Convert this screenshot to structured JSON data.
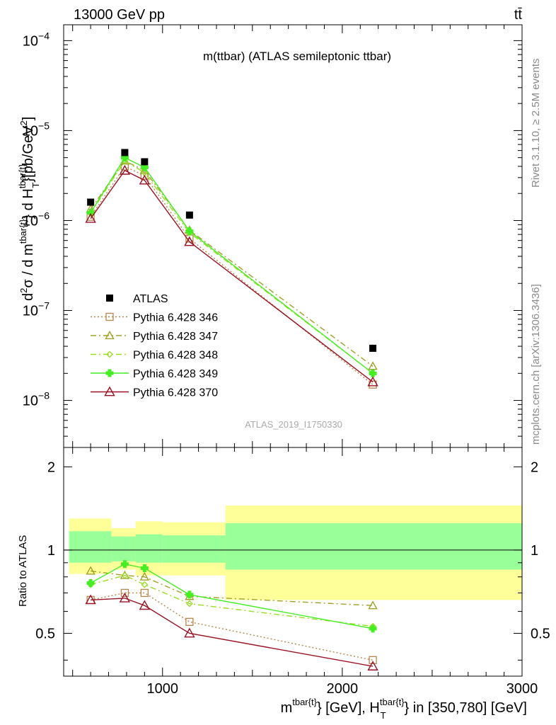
{
  "header": {
    "left_label": "13000 GeV pp",
    "right_label": "tt̄"
  },
  "side_text": {
    "rivet": "Rivet 3.1.10, ≥ 2.5M events",
    "mcplots": "mcplots.cern.ch [arXiv:1306.3436]"
  },
  "chart_data": [
    {
      "type": "line",
      "panel": "main",
      "title": "m(ttbar) (ATLAS semileptonic ttbar)",
      "ylabel": "d²σ / d m^{tbar{t}} d H_T^{tbar{t}} [pb/GeV²]",
      "yscale": "log",
      "ylim": [
        3e-09,
        0.00015
      ],
      "xlim": [
        450,
        3000
      ],
      "yticks": [
        {
          "value": 0.0001,
          "base": "10",
          "exp": "−4"
        },
        {
          "value": 1e-05,
          "base": "10",
          "exp": "−5"
        },
        {
          "value": 1e-06,
          "base": "10",
          "exp": "−6"
        },
        {
          "value": 1e-07,
          "base": "10",
          "exp": "−7"
        },
        {
          "value": 1e-08,
          "base": "10",
          "exp": "−8"
        }
      ],
      "x": [
        600,
        790,
        900,
        1150,
        2170
      ],
      "data": {
        "name": "ATLAS",
        "values": [
          1.6e-06,
          5.7e-06,
          4.5e-06,
          1.15e-06,
          3.8e-08
        ]
      },
      "series": [
        {
          "name": "Pythia 6.428 346",
          "color": "#b8864b",
          "dash": "2,3",
          "marker": "square",
          "values": [
            1.1e-06,
            4e-06,
            3.15e-06,
            6.3e-07,
            1.5e-08
          ]
        },
        {
          "name": "Pythia 6.428 347",
          "color": "#a0a028",
          "dash": "8,4,2,4",
          "marker": "triangle",
          "values": [
            1.34e-06,
            4.6e-06,
            3.6e-06,
            7.8e-07,
            2.4e-08
          ]
        },
        {
          "name": "Pythia 6.428 348",
          "color": "#99dd22",
          "dash": "8,4,2,4",
          "marker": "diamond",
          "values": [
            1.2e-06,
            4.6e-06,
            3.4e-06,
            7.3e-07,
            2e-08
          ]
        },
        {
          "name": "Pythia 6.428 349",
          "color": "#44ee22",
          "dash": "",
          "marker": "cross",
          "values": [
            1.22e-06,
            5e-06,
            3.9e-06,
            7.6e-07,
            2e-08
          ]
        },
        {
          "name": "Pythia 6.428 370",
          "color": "#991122",
          "dash": "",
          "marker": "triangle-open",
          "values": [
            1.05e-06,
            3.6e-06,
            2.8e-06,
            5.8e-07,
            1.6e-08
          ]
        }
      ],
      "reference": "ATLAS_2019_I1750330"
    },
    {
      "type": "line",
      "panel": "ratio",
      "ylabel": "Ratio to ATLAS",
      "ylim": [
        0.35,
        2.35
      ],
      "yticks": [
        0.5,
        1,
        2
      ],
      "xlim": [
        450,
        3000
      ],
      "xticks": [
        1000,
        2000,
        3000
      ],
      "xlabel": "m^{tbar{t}} [GeV], H_T^{tbar{t}} in [350,780] [GeV]",
      "bands": [
        {
          "x0": 480,
          "x1": 715,
          "yellow": [
            0.82,
            1.3
          ],
          "green": [
            0.9,
            1.17
          ]
        },
        {
          "x0": 715,
          "x1": 850,
          "yellow": [
            0.85,
            1.2
          ],
          "green": [
            0.91,
            1.12
          ]
        },
        {
          "x0": 850,
          "x1": 1000,
          "yellow": [
            0.81,
            1.27
          ],
          "green": [
            0.9,
            1.14
          ]
        },
        {
          "x0": 1000,
          "x1": 1350,
          "yellow": [
            0.81,
            1.26
          ],
          "green": [
            0.9,
            1.13
          ]
        },
        {
          "x0": 1350,
          "x1": 3000,
          "yellow": [
            0.66,
            1.45
          ],
          "green": [
            0.85,
            1.25
          ]
        }
      ],
      "x": [
        600,
        790,
        900,
        1150,
        2170
      ],
      "series": [
        {
          "name": "Pythia 6.428 346",
          "values": [
            0.66,
            0.7,
            0.7,
            0.55,
            0.4
          ]
        },
        {
          "name": "Pythia 6.428 347",
          "values": [
            0.84,
            0.81,
            0.8,
            0.68,
            0.63
          ]
        },
        {
          "name": "Pythia 6.428 348",
          "values": [
            0.75,
            0.81,
            0.75,
            0.64,
            0.53
          ]
        },
        {
          "name": "Pythia 6.428 349",
          "values": [
            0.76,
            0.89,
            0.86,
            0.69,
            0.52
          ]
        },
        {
          "name": "Pythia 6.428 370",
          "values": [
            0.66,
            0.67,
            0.63,
            0.5,
            0.38
          ]
        }
      ]
    }
  ]
}
